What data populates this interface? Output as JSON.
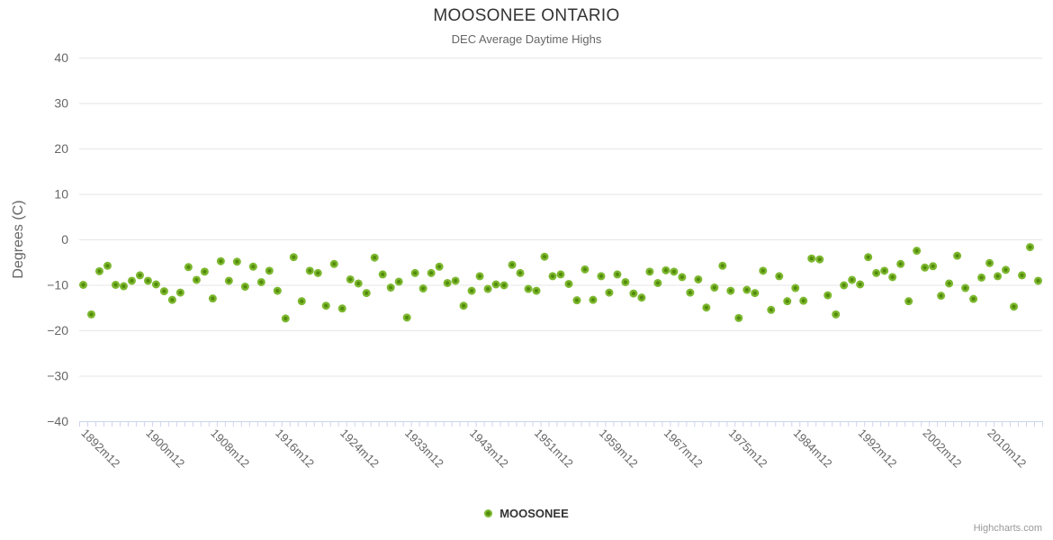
{
  "credit": "Highcharts.com",
  "colors": {
    "point_fill": "#7CB82F",
    "point_core": "#538A0B",
    "grid": "#E6E6E6",
    "axis_tick": "#CCD6EB",
    "title_text": "#333333",
    "muted_text": "#666666",
    "credit_text": "#999999",
    "background": "#FFFFFF"
  },
  "legend": {
    "series_label": "MOOSONEE"
  },
  "chart_data": {
    "type": "scatter",
    "title": "MOOSONEE ONTARIO",
    "subtitle": "DEC Average Daytime Highs",
    "xlabel": "",
    "ylabel": "Degrees (C)",
    "ylim": [
      -40,
      40
    ],
    "grid": true,
    "legend_position": "bottom-center",
    "y_ticks": [
      40,
      30,
      20,
      10,
      0,
      -10,
      -20,
      -30,
      -40
    ],
    "x_label_step": 8,
    "x_tick_labels": [
      "1892m12",
      "1900m12",
      "1908m12",
      "1916m12",
      "1924m12",
      "1933m12",
      "1943m12",
      "1951m12",
      "1959m12",
      "1967m12",
      "1975m12",
      "1984m12",
      "1992m12",
      "2002m12",
      "2010m12"
    ],
    "series": [
      {
        "name": "MOOSONEE",
        "values": [
          -10.0,
          -16.5,
          -7.0,
          -5.8,
          -10.0,
          -10.3,
          -9.1,
          -7.9,
          -9.1,
          -9.9,
          -11.4,
          -13.3,
          -11.7,
          -6.1,
          -8.9,
          -7.1,
          -13.0,
          -4.8,
          -9.1,
          -4.9,
          -10.4,
          -6.0,
          -9.4,
          -6.9,
          -11.3,
          -17.4,
          -3.9,
          -13.6,
          -6.9,
          -7.4,
          -14.6,
          -5.4,
          -15.2,
          -8.8,
          -9.7,
          -11.8,
          -4.0,
          -7.7,
          -10.6,
          -9.3,
          -17.2,
          -7.4,
          -10.8,
          -7.4,
          -6.0,
          -9.6,
          -9.1,
          -14.6,
          -11.3,
          -8.1,
          -10.9,
          -9.9,
          -10.1,
          -5.6,
          -7.4,
          -10.9,
          -11.3,
          -3.8,
          -8.1,
          -7.7,
          -9.8,
          -13.4,
          -6.6,
          -13.3,
          -8.1,
          -11.7,
          -7.7,
          -9.4,
          -11.9,
          -12.8,
          -7.1,
          -9.6,
          -6.8,
          -7.1,
          -8.3,
          -11.7,
          -8.8,
          -15.0,
          -10.6,
          -5.8,
          -11.3,
          -17.3,
          -11.1,
          -11.8,
          -6.9,
          -15.5,
          -8.1,
          -13.6,
          -10.7,
          -13.5,
          -4.2,
          -4.4,
          -12.3,
          -16.5,
          -10.1,
          -8.9,
          -9.9,
          -3.9,
          -7.4,
          -6.9,
          -8.3,
          -5.4,
          -13.6,
          -2.5,
          -6.2,
          -5.9,
          -12.4,
          -9.7,
          -3.6,
          -10.7,
          -13.1,
          -8.4,
          -5.2,
          -8.1,
          -6.7,
          -14.8,
          -7.9,
          -1.7,
          -9.1
        ]
      }
    ]
  }
}
